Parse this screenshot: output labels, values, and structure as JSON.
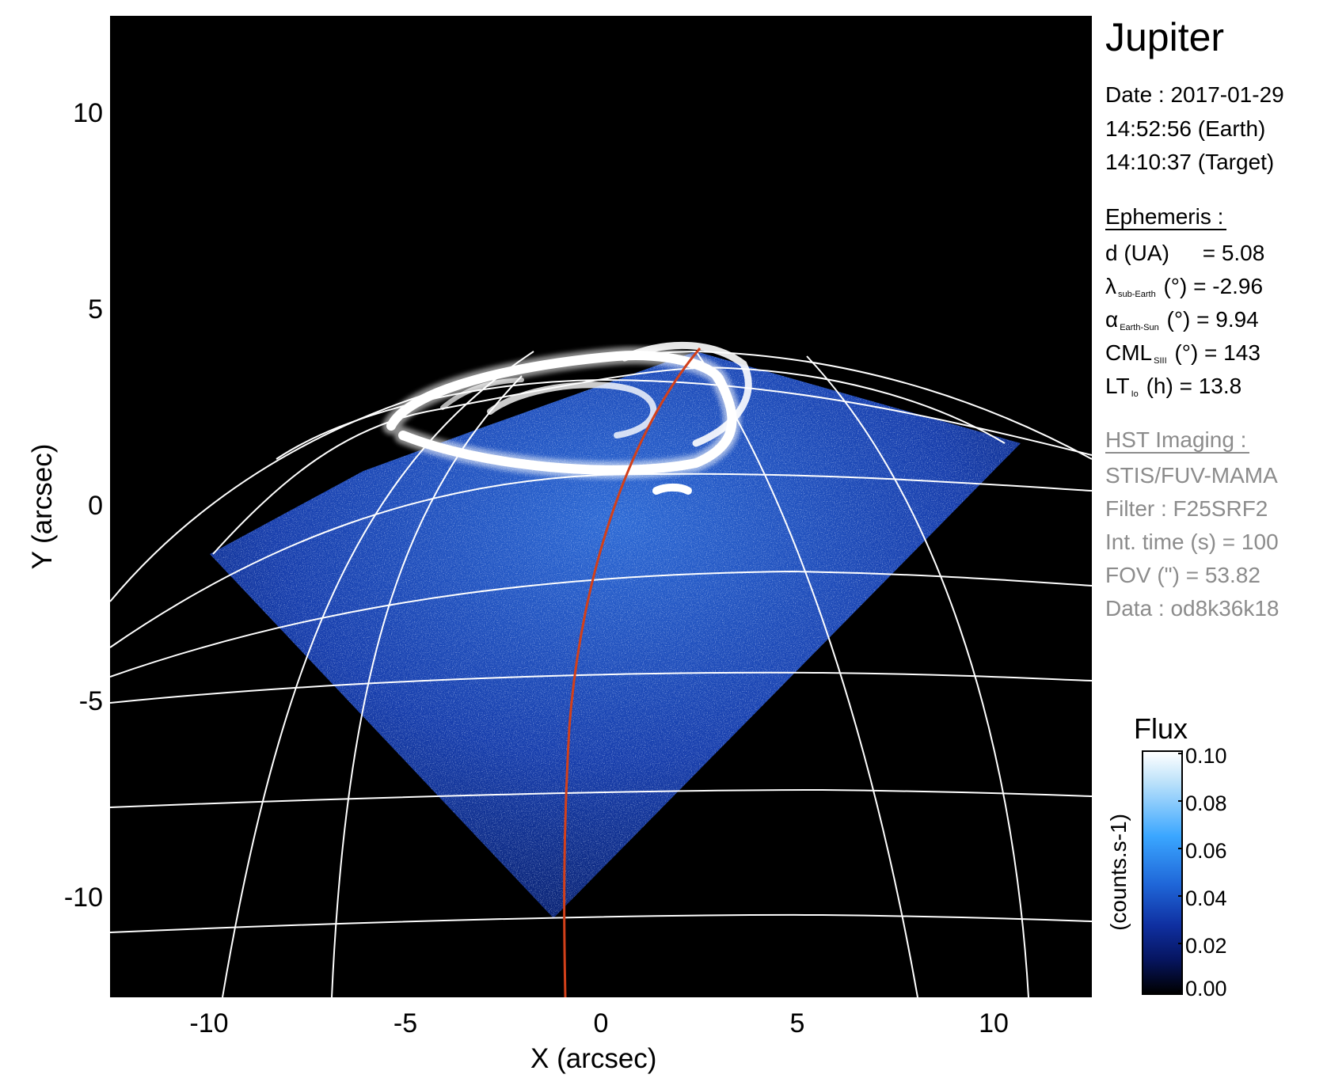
{
  "title": "Jupiter",
  "date_line": "Date : 2017-01-29",
  "time_earth": "14:52:56 (Earth)",
  "time_target": "14:10:37 (Target)",
  "ephemeris": {
    "header": "Ephemeris :",
    "d_label": "d (UA)",
    "d_value": "= 5.08",
    "lat_symbol": "λ",
    "lat_sub": "sub-Earth",
    "lat_value": "(°) = -2.96",
    "alpha_symbol": "α",
    "alpha_sub": "Earth-Sun",
    "alpha_value": "(°) = 9.94",
    "cml_label": "CML",
    "cml_sub": "SIII",
    "cml_value": "(°) = 143",
    "lt_label": "LT",
    "lt_sub": "Io",
    "lt_value": "(h) = 13.8"
  },
  "hst": {
    "header": "HST Imaging :",
    "instrument": "STIS/FUV-MAMA",
    "filter": "Filter : F25SRF2",
    "int_time": "Int. time (s) = 100",
    "fov": "FOV (\") = 53.82",
    "data_id": "Data : od8k36k18"
  },
  "axes": {
    "xlabel": "X (arcsec)",
    "ylabel": "Y (arcsec)",
    "xticks": [
      "-10",
      "-5",
      "0",
      "5",
      "10"
    ],
    "yticks": [
      "10",
      "5",
      "0",
      "-5",
      "-10"
    ],
    "xlim": [
      -12.5,
      12.5
    ],
    "ylim": [
      -12.5,
      12.5
    ]
  },
  "colorbar": {
    "title": "Flux",
    "unit": "(counts.s-1)",
    "ticks": [
      "0.10",
      "0.08",
      "0.06",
      "0.04",
      "0.02",
      "0.00"
    ],
    "range": [
      0.0,
      0.1
    ]
  },
  "colors": {
    "background": "#000000",
    "grid": "#ffffff",
    "meridian_highlight": "#d2401a",
    "emission_low": "#0b2a9a",
    "emission_high": "#ffffff",
    "inactive_text": "#8c8c8c"
  }
}
